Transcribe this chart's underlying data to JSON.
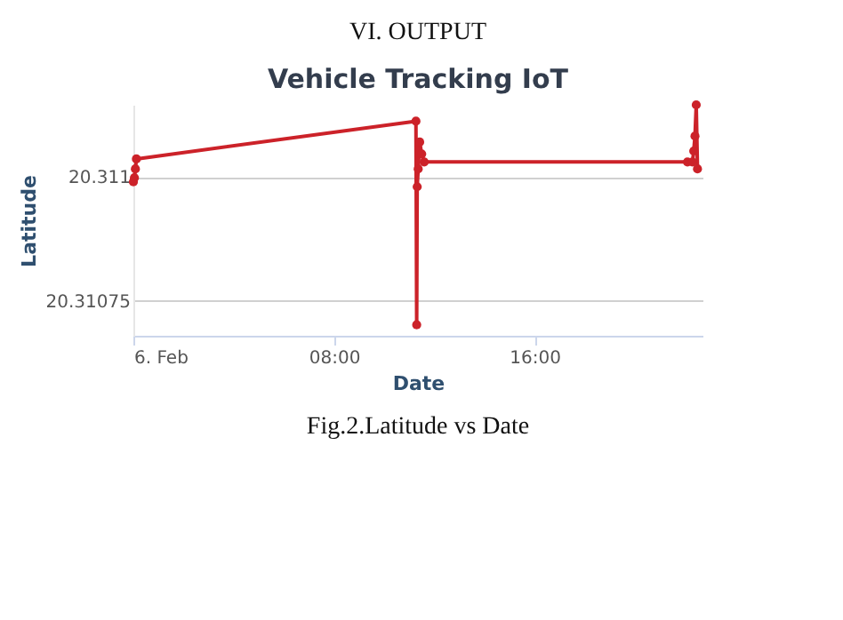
{
  "chart_data": {
    "type": "line",
    "title": "Vehicle Tracking IoT",
    "xlabel": "Date",
    "ylabel": "Latitude",
    "x": [
      0.0,
      0.04,
      0.08,
      0.12,
      11.27,
      11.3,
      11.32,
      11.36,
      11.42,
      11.5,
      11.6,
      22.1,
      22.3,
      22.35,
      22.4,
      22.45,
      22.5
    ],
    "series": [
      {
        "color": "#cc2229",
        "values": [
          20.31099,
          20.310998,
          20.311016,
          20.311036,
          20.311112,
          20.310702,
          20.31098,
          20.311016,
          20.31107,
          20.311046,
          20.31103,
          20.31103,
          20.31103,
          20.311052,
          20.311082,
          20.311145,
          20.311016
        ]
      }
    ],
    "xlim": [
      0,
      22.7
    ],
    "xticks": [
      {
        "value": 0,
        "label": "6. Feb"
      },
      {
        "value": 8,
        "label": "08:00"
      },
      {
        "value": 16,
        "label": "16:00"
      }
    ],
    "ylim": [
      20.31068,
      20.311145
    ],
    "yticks": [
      20.311,
      20.31075
    ],
    "grid": "y",
    "marker": "circle",
    "line_style": "solid",
    "annotations": [
      "VI. OUTPUT",
      "Fig.2.Latitude vs Date"
    ]
  }
}
